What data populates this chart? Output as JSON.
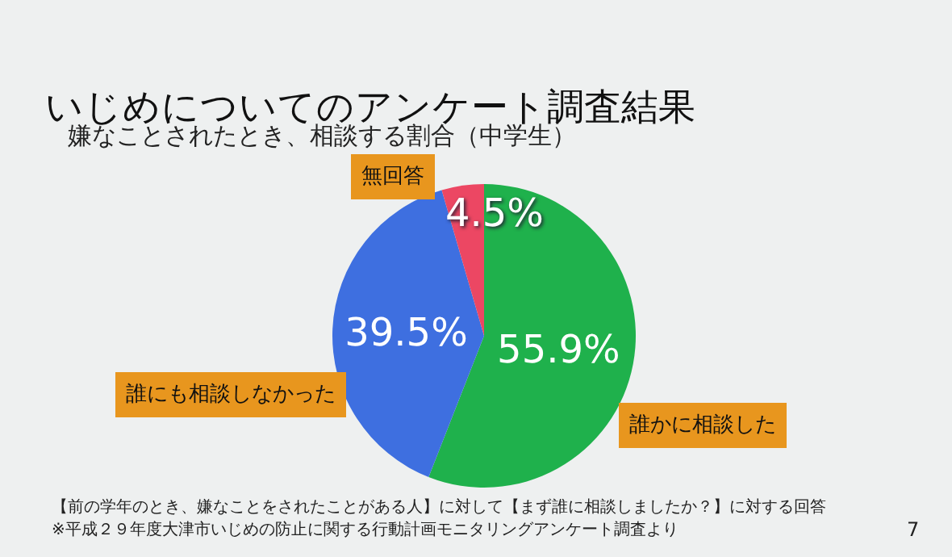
{
  "chart_data": {
    "type": "pie",
    "title": "いじめについてのアンケート調査結果",
    "subtitle": "嫌なことされたとき、相談する割合（中学生）",
    "categories": [
      "誰かに相談した",
      "誰にも相談しなかった",
      "無回答"
    ],
    "values": [
      55.9,
      39.5,
      4.5
    ],
    "colors": [
      "#1fb14c",
      "#3e6fe0",
      "#ec4763"
    ],
    "value_labels": [
      "55.9%",
      "39.5%",
      "4.5%"
    ],
    "annotations": [
      "【前の学年のとき、嫌なことをされたことがある人】に対して【まず誰に相談しましたか？】に対する回答",
      "※平成２９年度大津市いじめの防止に関する行動計画モニタリングアンケート調査より",
      "7"
    ]
  }
}
